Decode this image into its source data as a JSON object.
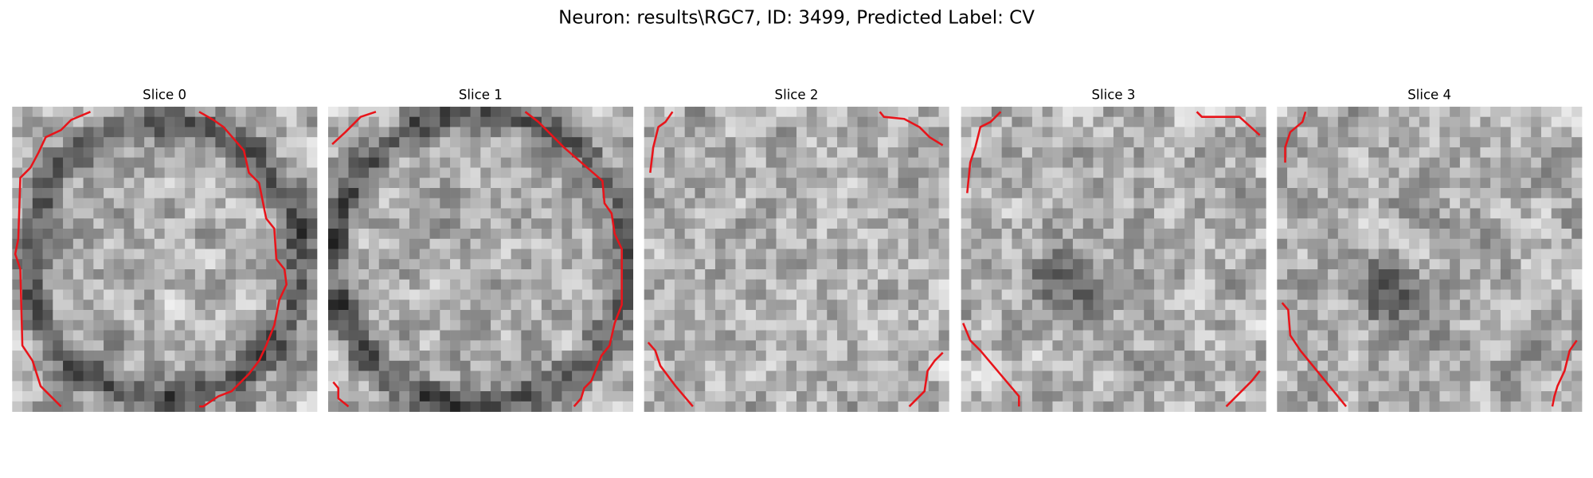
{
  "title": "Neuron: results\\RGC7, ID: 3499, Predicted Label: CV",
  "panels": [
    {
      "title": "Slice 0"
    },
    {
      "title": "Slice 1"
    },
    {
      "title": "Slice 2"
    },
    {
      "title": "Slice 3"
    },
    {
      "title": "Slice 4"
    }
  ]
}
